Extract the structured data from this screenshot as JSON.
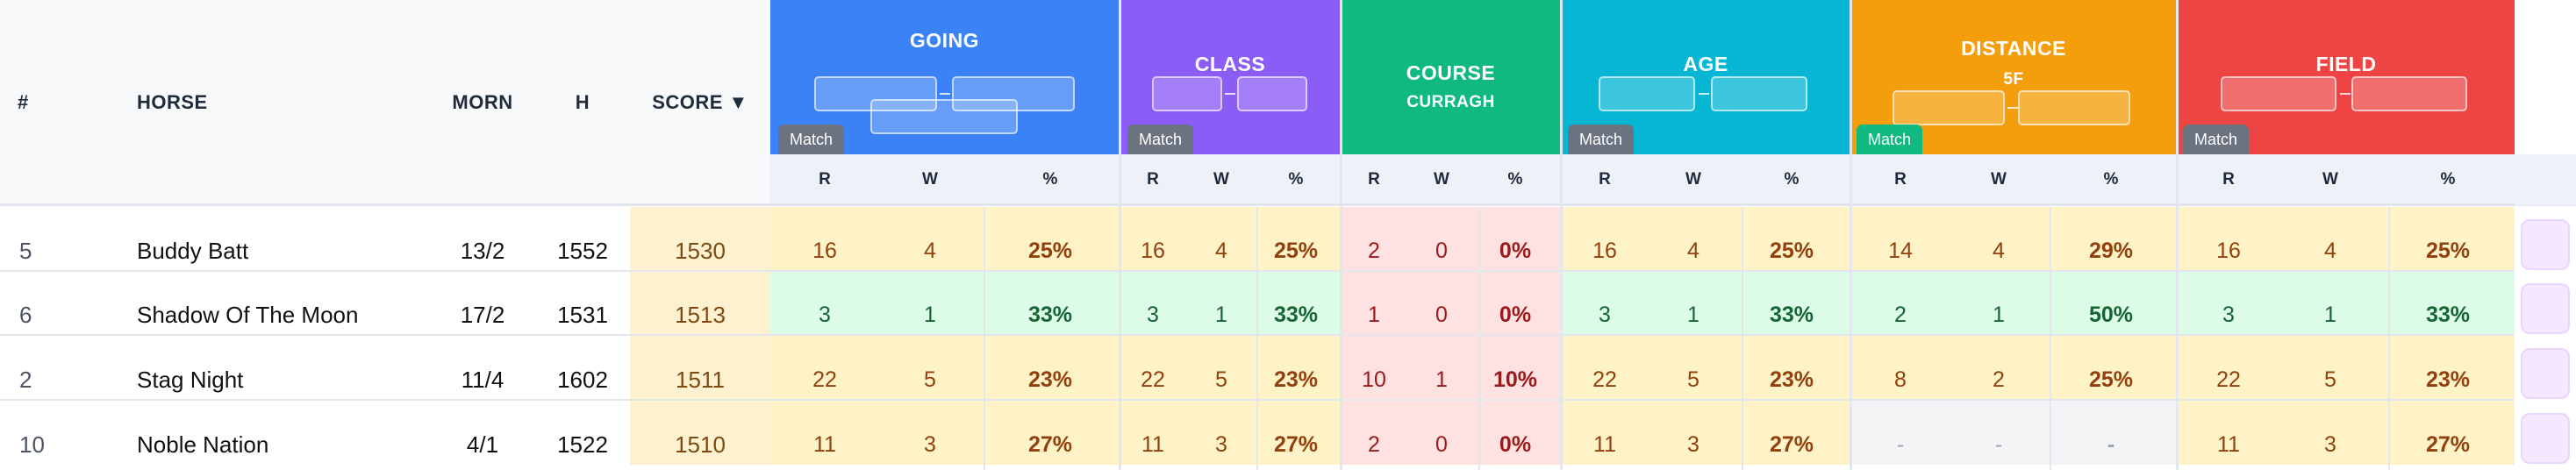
{
  "columns": {
    "num": "#",
    "horse": "HORSE",
    "morn": "MORN",
    "h": "H",
    "score": "SCORE ▼"
  },
  "groups": [
    {
      "id": "going",
      "title": "GOING",
      "subtitle": "",
      "color": "#3b82f6",
      "match": "Match",
      "match_color": "#6b7280"
    },
    {
      "id": "class",
      "title": "CLASS",
      "subtitle": "",
      "color": "#8b5cf6",
      "match": "Match",
      "match_color": "#6b7280"
    },
    {
      "id": "course",
      "title": "COURSE",
      "subtitle": "CURRAGH",
      "color": "#10b981",
      "match": "",
      "match_color": ""
    },
    {
      "id": "age",
      "title": "AGE",
      "subtitle": "",
      "color": "#06b6d4",
      "match": "Match",
      "match_color": "#6b7280"
    },
    {
      "id": "distance",
      "title": "DISTANCE",
      "subtitle": "5F",
      "color": "#f59e0b",
      "match": "Match",
      "match_color": "#10b981"
    },
    {
      "id": "field",
      "title": "FIELD",
      "subtitle": "",
      "color": "#ef4444",
      "match": "Match",
      "match_color": "#6b7280"
    }
  ],
  "sub_headers": {
    "r": "R",
    "w": "W",
    "pct": "%"
  },
  "rows": [
    {
      "num": "5",
      "horse": "Buddy Batt",
      "morn": "13/2",
      "h": "1552",
      "score": "1530",
      "stats": [
        [
          "16",
          "4",
          "25%"
        ],
        [
          "16",
          "4",
          "25%"
        ],
        [
          "2",
          "0",
          "0%"
        ],
        [
          "16",
          "4",
          "25%"
        ],
        [
          "14",
          "4",
          "29%"
        ],
        [
          "16",
          "4",
          "25%"
        ]
      ]
    },
    {
      "num": "6",
      "horse": "Shadow Of The Moon",
      "morn": "17/2",
      "h": "1531",
      "score": "1513",
      "stats": [
        [
          "3",
          "1",
          "33%"
        ],
        [
          "3",
          "1",
          "33%"
        ],
        [
          "1",
          "0",
          "0%"
        ],
        [
          "3",
          "1",
          "33%"
        ],
        [
          "2",
          "1",
          "50%"
        ],
        [
          "3",
          "1",
          "33%"
        ]
      ]
    },
    {
      "num": "2",
      "horse": "Stag Night",
      "morn": "11/4",
      "h": "1602",
      "score": "1511",
      "stats": [
        [
          "22",
          "5",
          "23%"
        ],
        [
          "22",
          "5",
          "23%"
        ],
        [
          "10",
          "1",
          "10%"
        ],
        [
          "22",
          "5",
          "23%"
        ],
        [
          "8",
          "2",
          "25%"
        ],
        [
          "22",
          "5",
          "23%"
        ]
      ]
    },
    {
      "num": "10",
      "horse": "Noble Nation",
      "morn": "4/1",
      "h": "1522",
      "score": "1510",
      "stats": [
        [
          "11",
          "3",
          "27%"
        ],
        [
          "11",
          "3",
          "27%"
        ],
        [
          "2",
          "0",
          "0%"
        ],
        [
          "11",
          "3",
          "27%"
        ],
        [
          "-",
          "-",
          "-"
        ],
        [
          "11",
          "3",
          "27%"
        ]
      ]
    }
  ],
  "colors": {
    "yellow_bg": "#fef3c7",
    "yellow_text": "#92400e",
    "green_bg": "#dcfce7",
    "green_text": "#166534",
    "red_bg": "#fee2e2",
    "red_text": "#991b1b",
    "gray_bg": "#f3f4f6",
    "gray_text": "#9ca3af",
    "score_bg": "#fdf1cf",
    "score_text": "#7c4a12"
  }
}
